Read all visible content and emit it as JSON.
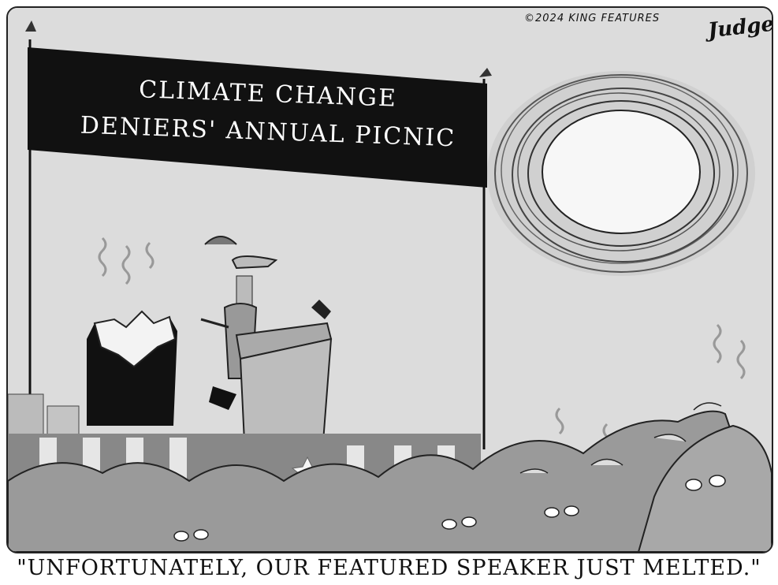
{
  "cartoon": {
    "copyright": "©2024 KING FEATURES",
    "signature": "Judge",
    "banner": {
      "line1": "CLIMATE CHANGE",
      "line2": "DENIERS' ANNUAL PICNIC"
    },
    "caption": "\"UNFORTUNATELY, OUR FEATURED SPEAKER JUST MELTED.\""
  }
}
